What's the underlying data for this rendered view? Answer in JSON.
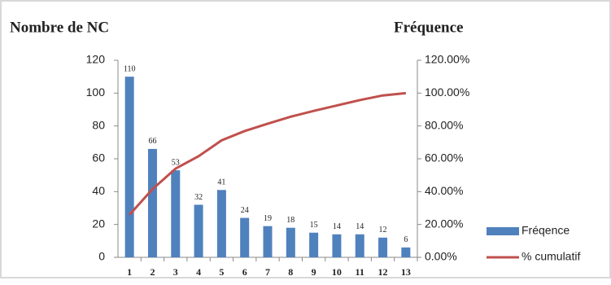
{
  "chart_data": {
    "type": "bar",
    "y_label": "Nombre de NC",
    "y2_label": "Fréquence",
    "categories": [
      "1",
      "2",
      "3",
      "4",
      "5",
      "6",
      "7",
      "8",
      "9",
      "10",
      "11",
      "12",
      "13"
    ],
    "series": [
      {
        "name": "Fréqence",
        "type": "bar",
        "color": "#4f81bd",
        "values": [
          110,
          66,
          53,
          32,
          41,
          24,
          19,
          18,
          15,
          14,
          14,
          12,
          6
        ]
      },
      {
        "name": "% cumulatif",
        "type": "line",
        "axis": "y2",
        "color": "#c0504d",
        "values": [
          25.94,
          41.51,
          54.01,
          61.56,
          71.23,
          76.89,
          81.37,
          85.61,
          89.15,
          92.45,
          95.75,
          98.58,
          100
        ]
      }
    ],
    "ylim": [
      0,
      120
    ],
    "yticks": [
      0,
      20,
      40,
      60,
      80,
      100,
      120
    ],
    "y2lim": [
      0,
      120
    ],
    "y2ticks": [
      {
        "value": 0,
        "label": "0.00%"
      },
      {
        "value": 20,
        "label": "20.00%"
      },
      {
        "value": 40,
        "label": "40.00%"
      },
      {
        "value": 60,
        "label": "60.00%"
      },
      {
        "value": 80,
        "label": "80.00%"
      },
      {
        "value": 100,
        "label": "100.00%"
      },
      {
        "value": 120,
        "label": "120.00%"
      }
    ],
    "legend": "right"
  }
}
